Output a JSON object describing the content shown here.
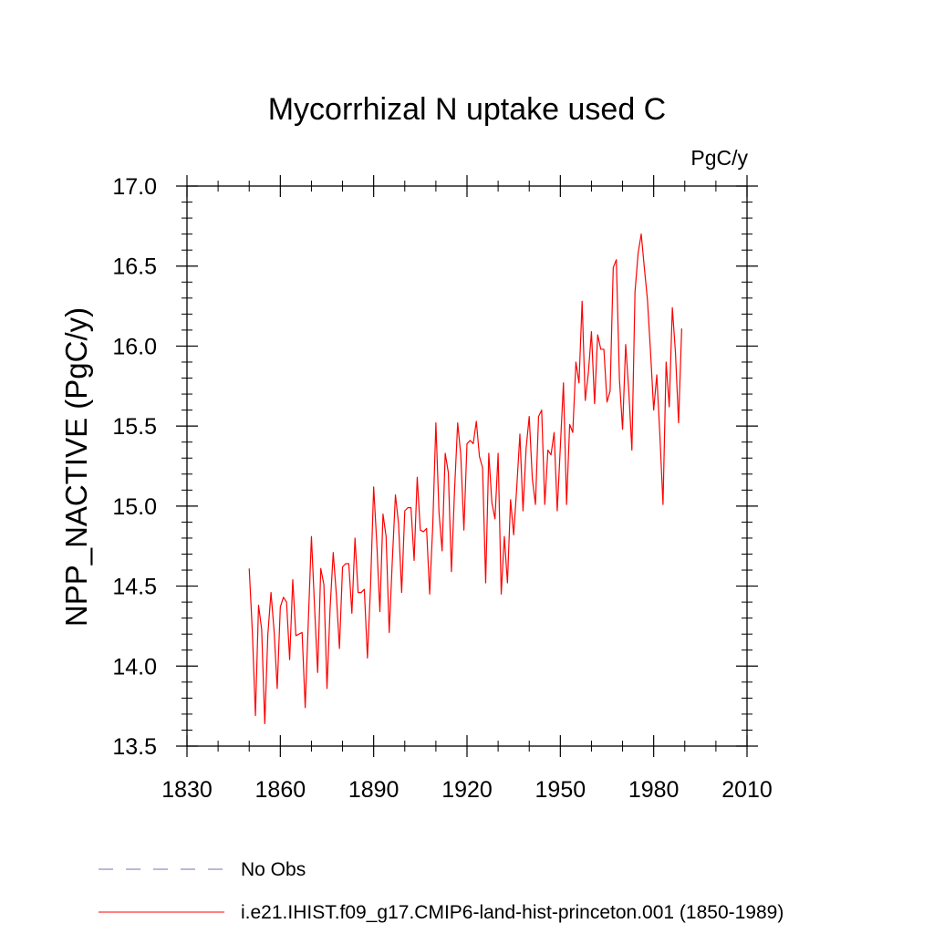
{
  "chart_data": {
    "type": "line",
    "title": "Mycorrhizal N uptake used C",
    "units": "PgC/y",
    "ylabel": "NPP_NACTIVE  (PgC/y)",
    "xlabel": "",
    "xlim": [
      1830,
      2010
    ],
    "ylim": [
      13.5,
      17.0
    ],
    "xticks": [
      1830,
      1860,
      1890,
      1920,
      1950,
      1980,
      2010
    ],
    "yticks": [
      "13.5",
      "14.0",
      "14.5",
      "15.0",
      "15.5",
      "16.0",
      "16.5",
      "17.0"
    ],
    "grid": false,
    "legend_position": "bottom",
    "series": [
      {
        "name": "No Obs",
        "color": "#7b6fb0",
        "dash": "dashed",
        "values": []
      },
      {
        "name": "i.e21.IHIST.f09_g17.CMIP6-land-hist-princeton.001 (1850-1989)",
        "color": "#ff0000",
        "dash": "solid",
        "x_start": 1850,
        "x_step": 1,
        "values": [
          14.61,
          14.22,
          13.69,
          14.38,
          14.23,
          13.64,
          14.2,
          14.46,
          14.22,
          13.86,
          14.37,
          14.43,
          14.4,
          14.04,
          14.54,
          14.19,
          14.2,
          14.21,
          13.74,
          14.28,
          14.81,
          14.37,
          13.96,
          14.61,
          14.51,
          13.86,
          14.36,
          14.71,
          14.45,
          14.11,
          14.62,
          14.64,
          14.64,
          14.33,
          14.8,
          14.46,
          14.46,
          14.48,
          14.05,
          14.5,
          15.12,
          14.77,
          14.34,
          14.95,
          14.81,
          14.21,
          14.66,
          15.07,
          14.89,
          14.46,
          14.97,
          14.99,
          14.99,
          14.66,
          15.18,
          14.85,
          14.84,
          14.86,
          14.45,
          14.88,
          15.52,
          14.96,
          14.72,
          15.33,
          15.21,
          14.59,
          15.1,
          15.52,
          15.32,
          14.85,
          15.39,
          15.41,
          15.39,
          15.53,
          15.31,
          15.24,
          14.52,
          15.33,
          15.02,
          14.92,
          15.33,
          14.45,
          14.81,
          14.52,
          15.04,
          14.82,
          15.12,
          15.45,
          14.97,
          15.36,
          15.56,
          15.17,
          15.01,
          15.56,
          15.6,
          15.01,
          15.35,
          15.32,
          15.46,
          14.97,
          15.37,
          15.77,
          15.01,
          15.51,
          15.46,
          15.9,
          15.77,
          16.28,
          15.66,
          15.83,
          16.09,
          15.64,
          16.07,
          15.98,
          15.98,
          15.65,
          15.72,
          16.49,
          16.54,
          15.79,
          15.48,
          16.01,
          15.72,
          15.35,
          16.34,
          16.58,
          16.7,
          16.49,
          16.29,
          15.96,
          15.6,
          15.82,
          15.44,
          15.01,
          15.9,
          15.62,
          16.24,
          15.96,
          15.52,
          16.11
        ]
      }
    ]
  }
}
